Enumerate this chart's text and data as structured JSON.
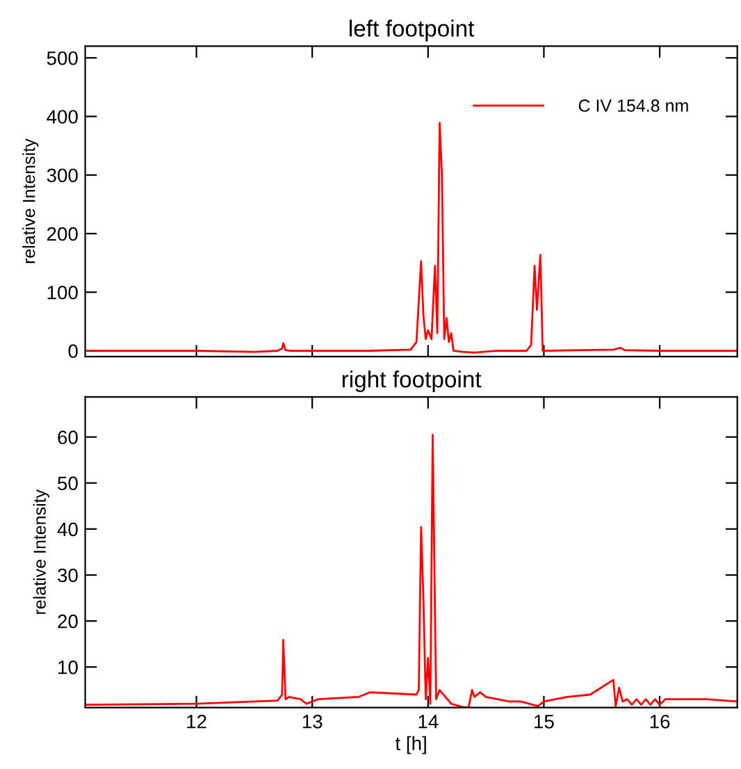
{
  "chart_data": [
    {
      "type": "line",
      "title": "left footpoint",
      "ylabel": "relative Intensity",
      "xlim": [
        11.04,
        16.67
      ],
      "xticks": [
        12,
        13,
        14,
        15,
        16
      ],
      "ylim": [
        -10,
        520
      ],
      "yticks": [
        0,
        100,
        200,
        300,
        400,
        500
      ],
      "tick_labels": "y",
      "legend": "top right",
      "grid": false,
      "series": [
        {
          "name": "C IV 154.8 nm",
          "color": "#ff0000",
          "x": [
            11.05,
            12.0,
            12.5,
            12.7,
            12.74,
            12.75,
            12.77,
            12.8,
            13.0,
            13.5,
            13.85,
            13.9,
            13.94,
            13.96,
            13.98,
            14.0,
            14.03,
            14.06,
            14.08,
            14.1,
            14.12,
            14.14,
            14.16,
            14.18,
            14.2,
            14.22,
            14.3,
            14.4,
            14.6,
            14.85,
            14.89,
            14.92,
            14.94,
            14.97,
            14.99,
            15.02,
            15.3,
            15.6,
            15.66,
            15.7,
            16.0,
            16.67
          ],
          "values": [
            0,
            0,
            -2,
            0,
            4,
            13,
            1,
            0,
            0,
            0,
            2,
            15,
            153,
            60,
            20,
            35,
            20,
            145,
            30,
            389,
            300,
            20,
            56,
            15,
            30,
            0,
            -2,
            -3,
            0,
            0,
            10,
            145,
            70,
            164,
            0,
            0,
            1,
            2,
            5,
            1,
            0,
            0
          ]
        }
      ]
    },
    {
      "type": "line",
      "title": "right footpoint",
      "xlabel": "t [h]",
      "ylabel": "relative Intensity",
      "xlim": [
        11.04,
        16.67
      ],
      "xticks": [
        12,
        13,
        14,
        15,
        16
      ],
      "ylim": [
        1.2,
        68.7
      ],
      "yticks": [
        10,
        20,
        30,
        40,
        50,
        60
      ],
      "grid": false,
      "series": [
        {
          "color": "#ff0000",
          "x": [
            11.05,
            12.0,
            12.7,
            12.74,
            12.75,
            12.77,
            12.8,
            12.9,
            12.95,
            13.05,
            13.4,
            13.5,
            13.9,
            13.92,
            13.94,
            13.96,
            13.98,
            14.0,
            14.02,
            14.04,
            14.07,
            14.1,
            14.2,
            14.3,
            14.35,
            14.38,
            14.4,
            14.45,
            14.5,
            14.6,
            14.7,
            14.8,
            14.95,
            15.0,
            15.2,
            15.4,
            15.6,
            15.62,
            15.65,
            15.68,
            15.72,
            15.76,
            15.8,
            15.84,
            15.88,
            15.92,
            15.96,
            16.0,
            16.05,
            16.1,
            16.4,
            16.67
          ],
          "values": [
            1.8,
            2.0,
            2.7,
            4,
            15.9,
            3,
            3.5,
            3,
            2.0,
            3,
            3.5,
            4.5,
            4,
            5,
            40.4,
            25,
            3,
            12,
            2,
            60.5,
            3,
            5,
            2,
            1.3,
            1.2,
            5,
            3.5,
            4.5,
            3.5,
            3,
            2.5,
            2.5,
            1.5,
            2.5,
            3.5,
            4,
            7.2,
            1.5,
            5.5,
            2.5,
            3,
            1.8,
            3,
            1.8,
            3,
            1.8,
            3,
            1.8,
            3,
            3,
            3,
            2.5
          ]
        }
      ]
    }
  ]
}
